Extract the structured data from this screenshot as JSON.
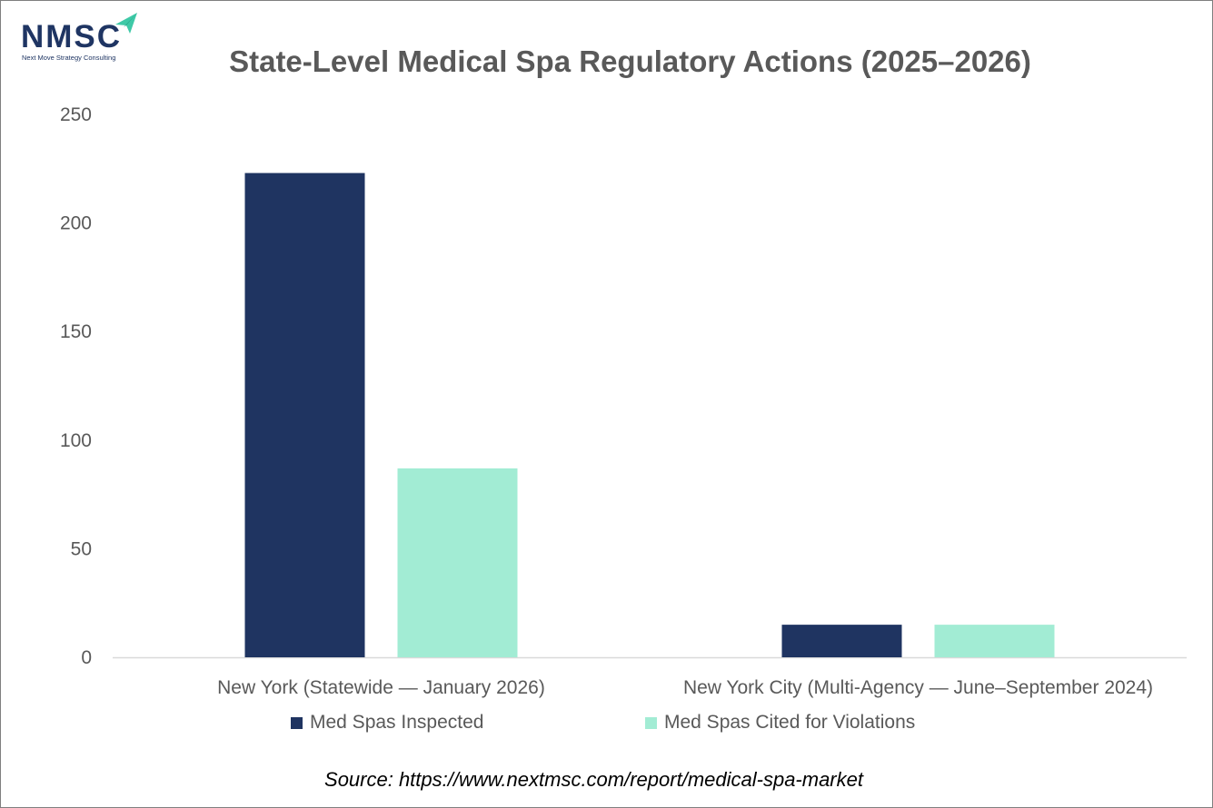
{
  "logo": {
    "text": "NMSC",
    "tagline": "Next Move Strategy Consulting",
    "colors": {
      "text": "#1f3563",
      "arrow": "#3ec9a7"
    }
  },
  "chart_data": {
    "type": "bar",
    "title": "State-Level Medical Spa Regulatory Actions (2025–2026)",
    "xlabel": "",
    "ylabel": "",
    "categories": [
      "New York (Statewide — January 2026)",
      "New York City (Multi-Agency — June–September 2024)"
    ],
    "series": [
      {
        "name": "Med Spas Inspected",
        "values": [
          223,
          15
        ],
        "color": "#1f3461"
      },
      {
        "name": "Med Spas Cited for Violations",
        "values": [
          87,
          15
        ],
        "color": "#a2ecd4"
      }
    ],
    "ylim": [
      0,
      250
    ],
    "yticks": [
      0,
      50,
      100,
      150,
      200,
      250
    ],
    "grid": false,
    "legend_position": "bottom"
  },
  "source": "Source: https://www.nextmsc.com/report/medical-spa-market"
}
